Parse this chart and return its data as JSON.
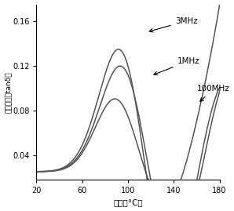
{
  "title": "",
  "xlabel": "温度（°C）",
  "ylabel": "誤電正接（tanδ）",
  "xlim": [
    20,
    180
  ],
  "ylim": [
    0.018,
    0.175
  ],
  "xticks": [
    20,
    60,
    100,
    140,
    180
  ],
  "yticks": [
    0.04,
    0.08,
    0.12,
    0.16
  ],
  "background_color": "#ffffff",
  "line_color": "#555555"
}
